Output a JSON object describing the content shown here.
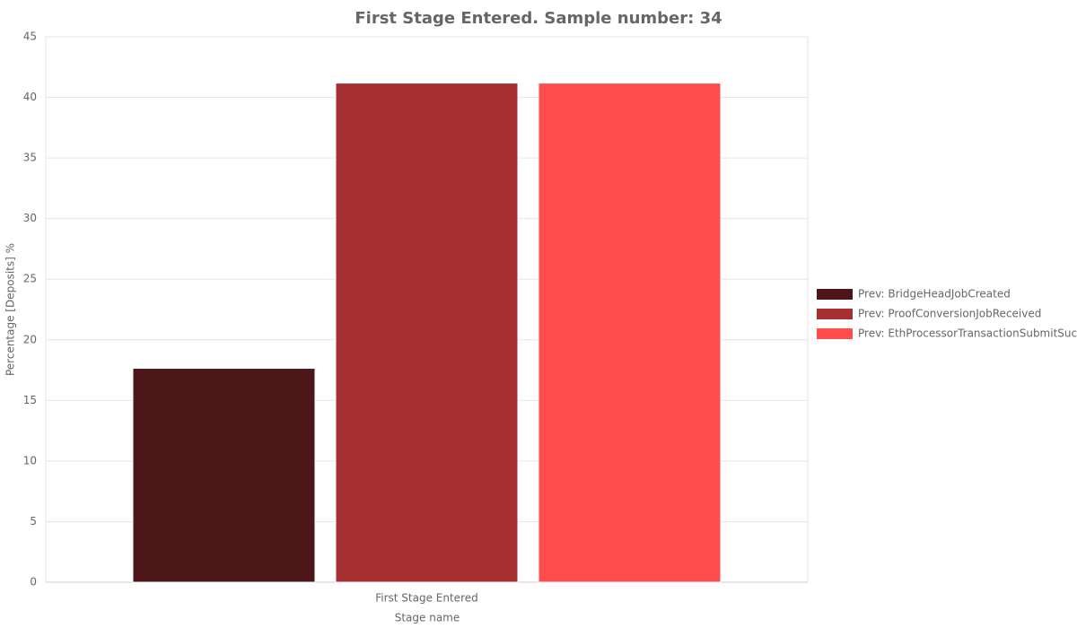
{
  "chart_data": {
    "type": "bar",
    "title": "First Stage Entered. Sample number: 34",
    "x_label": "Stage name",
    "y_label": "Percentage [Deposits] %",
    "categories": [
      "First Stage Entered"
    ],
    "series": [
      {
        "name": "Prev: BridgeHeadJobCreated",
        "color": "#4d1719",
        "values": [
          17.65
        ]
      },
      {
        "name": "Prev: ProofConversionJobReceived",
        "color": "#a52f31",
        "values": [
          41.18
        ]
      },
      {
        "name": "Prev: EthProcessorTransactionSubmitSuc",
        "color": "#ff4d4d",
        "values": [
          41.18
        ]
      }
    ],
    "ylim": [
      0,
      45
    ],
    "yticks": [
      0,
      5,
      10,
      15,
      20,
      25,
      30,
      35,
      40,
      45
    ],
    "grid": true,
    "legend": "right"
  }
}
